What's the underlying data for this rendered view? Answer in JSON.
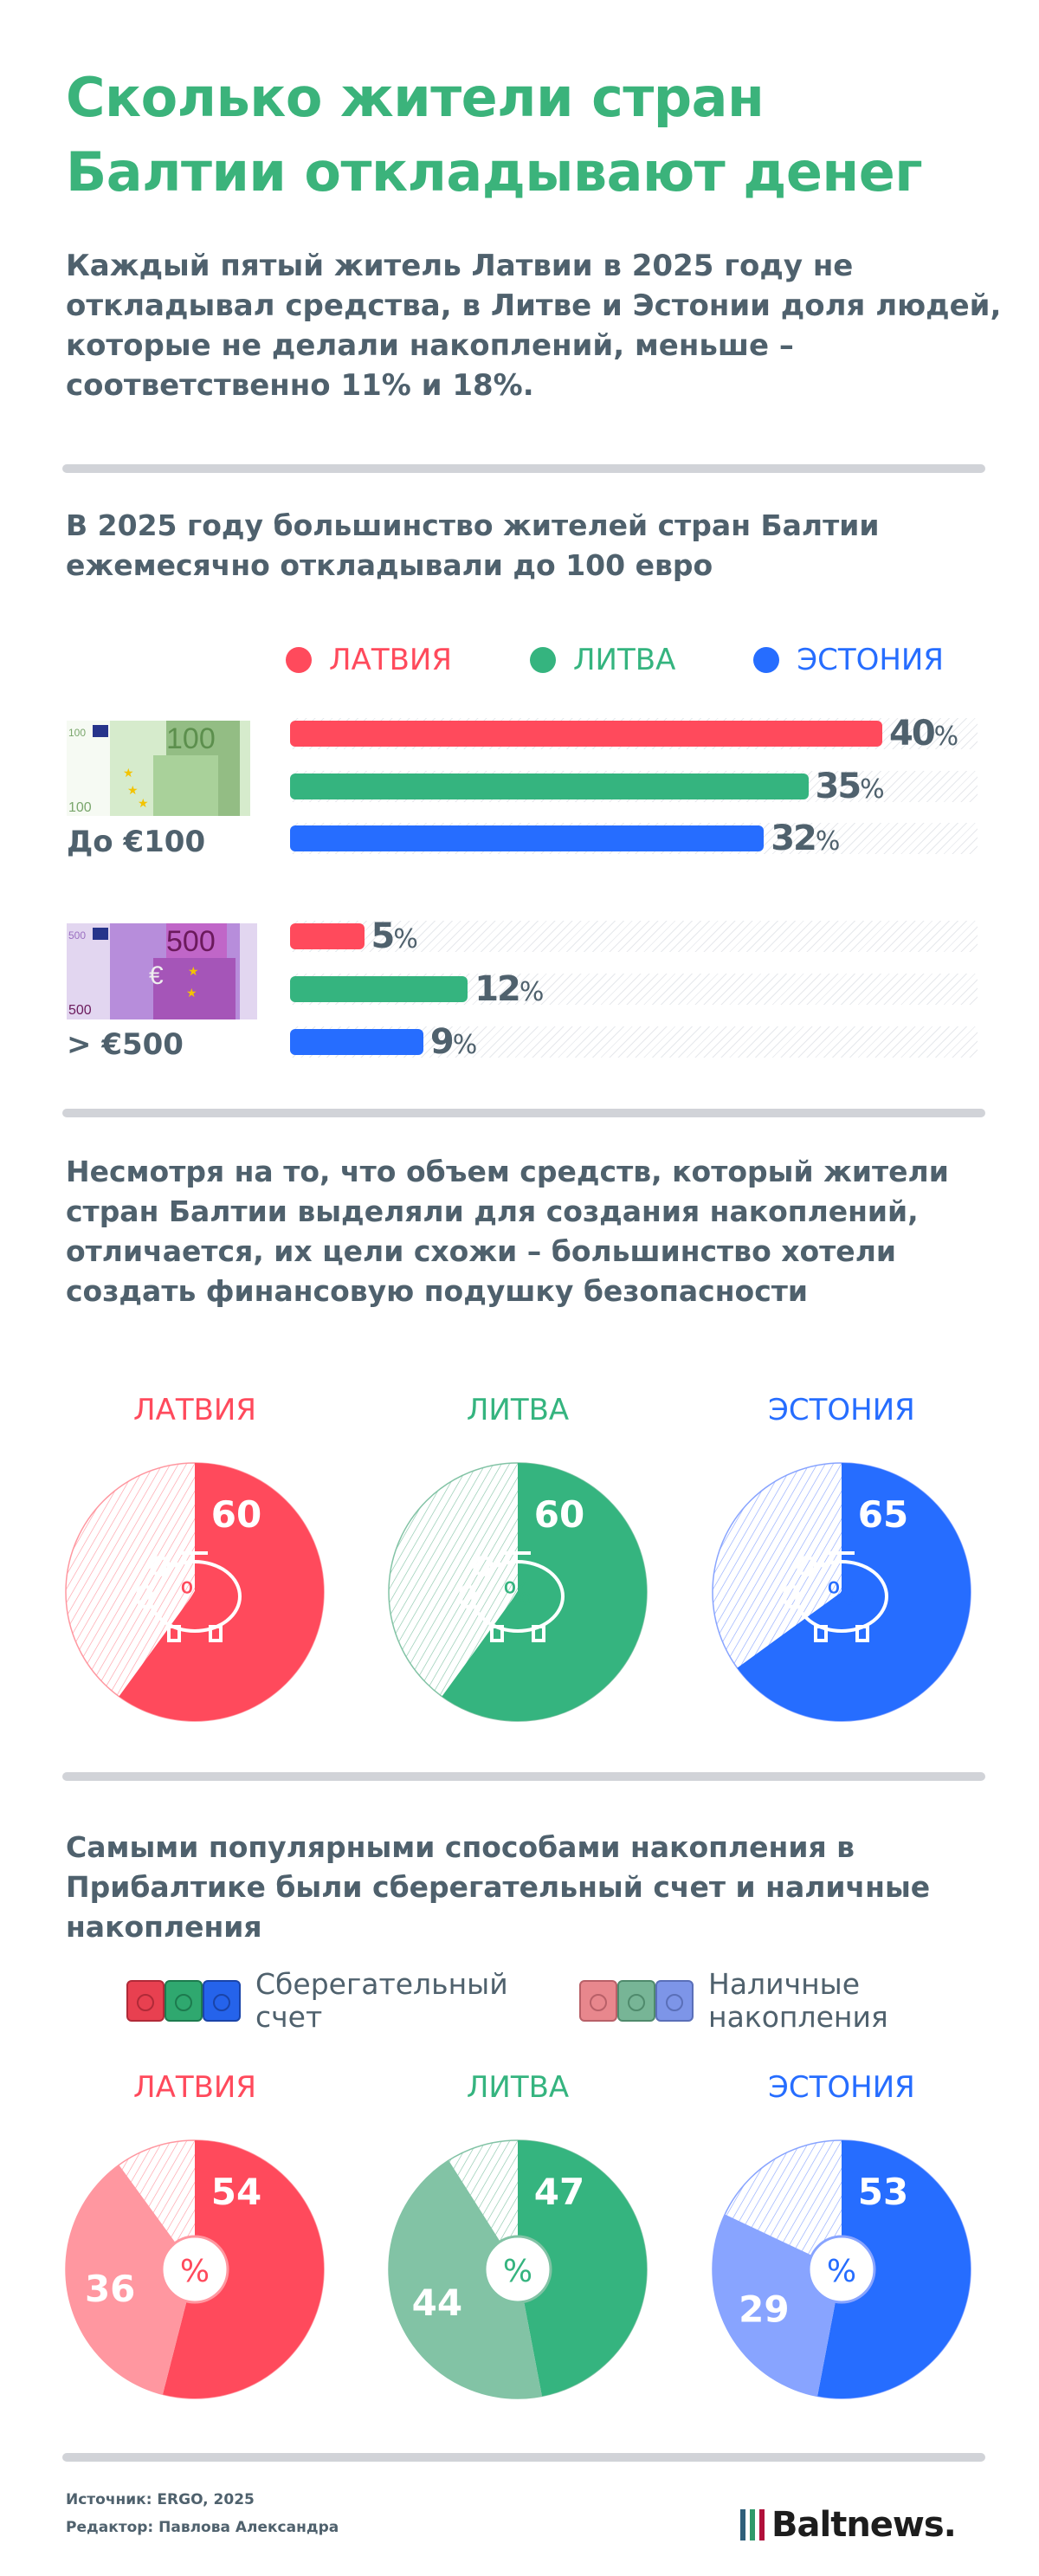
{
  "header": {
    "title": "Сколько жители стран Балтии откладывают денег",
    "lead": "Каждый пятый житель Латвии в 2025 году не откладывал средства, в Литве и Эстонии доля людей, которые не делали накоплений, меньше – соответственно 11% и 18%."
  },
  "colors": {
    "latvia": "#ff4a5c",
    "lithuania": "#35b47f",
    "estonia": "#266dff",
    "latvia_light": "#ff97a0",
    "lithuania_light": "#82c3a5",
    "estonia_light": "#88a4ff",
    "title": "#3bb37b"
  },
  "countries": [
    "ЛАТВИЯ",
    "ЛИТВА",
    "ЭСТОНИЯ"
  ],
  "chart_data": [
    {
      "type": "bar",
      "title": "В 2025 году большинство жителей стран Балтии ежемесячно откладывали до 100 евро",
      "legend": [
        "ЛАТВИЯ",
        "ЛИТВА",
        "ЭСТОНИЯ"
      ],
      "categories": [
        "До €100",
        "> €500"
      ],
      "series": [
        {
          "name": "ЛАТВИЯ",
          "values": [
            40,
            5
          ]
        },
        {
          "name": "ЛИТВА",
          "values": [
            35,
            12
          ]
        },
        {
          "name": "ЭСТОНИЯ",
          "values": [
            32,
            9
          ]
        }
      ],
      "unit": "%",
      "banknotes": [
        "100",
        "500"
      ]
    },
    {
      "type": "pie",
      "title": "Несмотря на то, что объем средств, который жители стран Балтии выделяли для создания накоплений, отличается, их цели схожи – большинство хотели создать финансовую подушку безопасности",
      "pies": [
        {
          "name": "ЛАТВИЯ",
          "values": [
            60
          ]
        },
        {
          "name": "ЛИТВА",
          "values": [
            60
          ]
        },
        {
          "name": "ЭСТОНИЯ",
          "values": [
            65
          ]
        }
      ],
      "center_label": "%",
      "center_icon": "piggy-bank-icon"
    },
    {
      "type": "pie",
      "title": "Самыми популярными способами накопления в Прибалтике были сберегательный счет и наличные накопления",
      "legend": [
        "Сберегательный счет",
        "Наличные накопления"
      ],
      "legend_icon": "safe-icon",
      "pies": [
        {
          "name": "ЛАТВИЯ",
          "values": [
            54,
            36
          ]
        },
        {
          "name": "ЛИТВА",
          "values": [
            47,
            44
          ]
        },
        {
          "name": "ЭСТОНИЯ",
          "values": [
            53,
            29
          ]
        }
      ],
      "center_label": "%"
    }
  ],
  "footer": {
    "source": "Источник: ERGO, 2025",
    "editor": "Редактор: Павлова Александра",
    "logo": "Baltnews."
  }
}
